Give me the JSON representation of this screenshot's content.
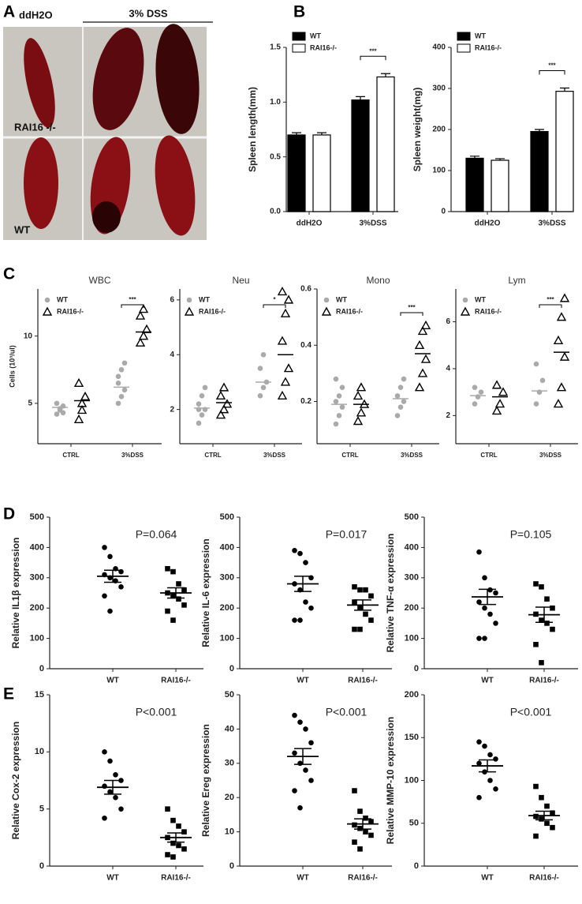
{
  "panel_labels": [
    "A",
    "B",
    "C",
    "D",
    "E"
  ],
  "photo": {
    "control": "ddH2O",
    "treatment": "3% DSS",
    "row_top": "RAI16 -/-",
    "row_bottom": "WT"
  },
  "chart_data": [
    {
      "type": "bar",
      "ylabel": "Spleen length(mm)",
      "categories": [
        "ddH2O",
        "3%DSS"
      ],
      "ylim": [
        0,
        1.5
      ],
      "yticks": [
        {
          "value": 0,
          "label": "0.0"
        },
        0.5,
        {
          "value": 1,
          "label": "1.0"
        },
        1.5
      ],
      "annotation": "***",
      "legend": "top-left",
      "series": [
        {
          "name": "WT",
          "color": "#000000",
          "values": [
            0.7,
            1.02
          ],
          "errors": [
            0.02,
            0.03
          ]
        },
        {
          "name": "RAI16-/-",
          "color": "#ffffff",
          "values": [
            0.7,
            1.23
          ],
          "errors": [
            0.02,
            0.03
          ]
        }
      ]
    },
    {
      "type": "bar",
      "ylabel": "Spleen weight(mg)",
      "categories": [
        "ddH2O",
        "3%DSS"
      ],
      "ylim": [
        0,
        400
      ],
      "yticks": [
        0,
        100,
        200,
        300,
        400
      ],
      "annotation": "***",
      "legend": "top-left",
      "series": [
        {
          "name": "WT",
          "color": "#000000",
          "values": [
            130,
            195
          ],
          "errors": [
            5,
            5
          ]
        },
        {
          "name": "RAI16-/-",
          "color": "#ffffff",
          "values": [
            125,
            293
          ],
          "errors": [
            4,
            8
          ]
        }
      ]
    },
    {
      "type": "dot",
      "title": "WBC",
      "ylabel": "Cells (10³/ul)",
      "categories": [
        "CTRL",
        "3%DSS"
      ],
      "ylim": [
        2,
        13.5
      ],
      "yticks": [
        5,
        10
      ],
      "annotation": "***",
      "legend": "top-left",
      "series": [
        {
          "name": "WT",
          "color": "#aaaaaa",
          "marker": "circle",
          "points": [
            [
              4.2,
              4.5,
              4.8,
              5.0,
              4.6,
              4.3
            ],
            [
              5,
              5.5,
              6,
              6.5,
              7.5,
              8,
              7
            ]
          ],
          "means": [
            4.7,
            6.2
          ]
        },
        {
          "name": "RAI16-/-",
          "color": "#000000",
          "marker": "open-triangle",
          "points": [
            [
              3.8,
              4.5,
              5.5,
              6.5,
              5.0
            ],
            [
              9.5,
              10,
              10.5,
              11.5,
              12
            ]
          ],
          "means": [
            5.2,
            10.3
          ]
        }
      ]
    },
    {
      "type": "dot",
      "title": "Neu",
      "categories": [
        "CTRL",
        "3%DSS"
      ],
      "ylim": [
        0.75,
        6.4
      ],
      "yticks": [
        2,
        4,
        6
      ],
      "annotation": "*",
      "legend": "top-left",
      "series": [
        {
          "name": "WT",
          "color": "#aaaaaa",
          "marker": "circle",
          "points": [
            [
              1.5,
              1.8,
              2.0,
              2.2,
              2.5,
              2.8,
              2.0
            ],
            [
              2.5,
              2.8,
              3.0,
              3.5,
              4.0
            ]
          ],
          "means": [
            2.05,
            3.0
          ]
        },
        {
          "name": "RAI16-/-",
          "color": "#000000",
          "marker": "open-triangle",
          "points": [
            [
              1.8,
              2.0,
              2.2,
              2.5,
              2.8
            ],
            [
              2.5,
              3,
              3.5,
              4.5,
              5.5,
              6.0,
              6.3
            ]
          ],
          "means": [
            2.25,
            4.0
          ]
        }
      ]
    },
    {
      "type": "dot",
      "title": "Mono",
      "categories": [
        "CTRL",
        "3%DSS"
      ],
      "ylim": [
        0.05,
        0.6
      ],
      "yticks": [
        0.2,
        0.4,
        0.6
      ],
      "annotation": "***",
      "legend": "top-left",
      "series": [
        {
          "name": "WT",
          "color": "#aaaaaa",
          "marker": "circle",
          "points": [
            [
              0.12,
              0.15,
              0.18,
              0.2,
              0.22,
              0.25,
              0.28
            ],
            [
              0.15,
              0.18,
              0.2,
              0.22,
              0.25,
              0.28
            ]
          ],
          "means": [
            0.19,
            0.21
          ]
        },
        {
          "name": "RAI16-/-",
          "color": "#000000",
          "marker": "open-triangle",
          "points": [
            [
              0.13,
              0.16,
              0.19,
              0.22,
              0.25
            ],
            [
              0.25,
              0.3,
              0.35,
              0.4,
              0.45,
              0.47
            ]
          ],
          "means": [
            0.19,
            0.37
          ]
        }
      ]
    },
    {
      "type": "dot",
      "title": "Lym",
      "categories": [
        "CTRL",
        "3%DSS"
      ],
      "ylim": [
        0.8,
        7.4
      ],
      "yticks": [
        2,
        4,
        6
      ],
      "annotation": "***",
      "legend": "top-left",
      "series": [
        {
          "name": "WT",
          "color": "#aaaaaa",
          "marker": "circle",
          "points": [
            [
              2.5,
              2.8,
              3.0,
              3.2
            ],
            [
              2.5,
              3.0,
              3.5,
              4.2
            ]
          ],
          "means": [
            2.85,
            3.05
          ]
        },
        {
          "name": "RAI16-/-",
          "color": "#000000",
          "marker": "open-triangle",
          "points": [
            [
              2.2,
              2.5,
              3.0,
              3.3
            ],
            [
              2.5,
              3.2,
              4.5,
              5.2,
              6.2,
              7.0
            ]
          ],
          "means": [
            2.8,
            4.7
          ]
        }
      ]
    },
    {
      "type": "sem",
      "ylabel": "Relative IL1β expression",
      "annotation": "P=0.064",
      "categories": [
        "WT",
        "RAI16-/-"
      ],
      "ylim": [
        0,
        500
      ],
      "yticks": [
        0,
        100,
        200,
        300,
        400,
        500
      ],
      "groups": [
        {
          "marker": "circle",
          "points": [
            400,
            370,
            330,
            320,
            310,
            300,
            290,
            270,
            240,
            190
          ],
          "mean": 305,
          "sem": 20
        },
        {
          "marker": "square",
          "points": [
            330,
            320,
            280,
            260,
            250,
            240,
            230,
            210,
            190,
            160
          ],
          "mean": 250,
          "sem": 17
        }
      ]
    },
    {
      "type": "sem",
      "ylabel": "Relative IL-6 expression",
      "annotation": "P=0.017",
      "categories": [
        "WT",
        "RAI16-/-"
      ],
      "ylim": [
        0,
        500
      ],
      "yticks": [
        0,
        100,
        200,
        300,
        400,
        500
      ],
      "groups": [
        {
          "marker": "circle",
          "points": [
            390,
            380,
            350,
            300,
            280,
            260,
            220,
            200,
            160,
            160
          ],
          "mean": 280,
          "sem": 25
        },
        {
          "marker": "square",
          "points": [
            270,
            260,
            260,
            240,
            220,
            200,
            180,
            160,
            130,
            130
          ],
          "mean": 210,
          "sem": 17
        }
      ]
    },
    {
      "type": "sem",
      "ylabel": "Relative TNF-α expression",
      "annotation": "P=0.105",
      "categories": [
        "WT",
        "RAI16-/-"
      ],
      "ylim": [
        0,
        500
      ],
      "yticks": [
        0,
        100,
        200,
        300,
        400,
        500
      ],
      "groups": [
        {
          "marker": "circle",
          "points": [
            385,
            300,
            260,
            250,
            220,
            200,
            180,
            150,
            100,
            100
          ],
          "mean": 237,
          "sem": 25
        },
        {
          "marker": "square",
          "points": [
            280,
            270,
            230,
            200,
            180,
            160,
            150,
            130,
            80,
            20
          ],
          "mean": 178,
          "sem": 25
        }
      ]
    },
    {
      "type": "sem",
      "ylabel": "Relative Cox-2 expression",
      "annotation": "P<0.001",
      "categories": [
        "WT",
        "RAI16-/-"
      ],
      "ylim": [
        0,
        15
      ],
      "yticks": [
        0,
        5,
        10,
        15
      ],
      "groups": [
        {
          "marker": "circle",
          "points": [
            10,
            9.2,
            8,
            7.5,
            7,
            6.5,
            6,
            5,
            4.2
          ],
          "mean": 6.9,
          "sem": 0.6
        },
        {
          "marker": "square",
          "points": [
            5,
            4,
            3.5,
            3,
            2.5,
            2,
            1.8,
            1.5,
            1,
            0.8
          ],
          "mean": 2.5,
          "sem": 0.4
        }
      ]
    },
    {
      "type": "sem",
      "ylabel": "Relative Ereg expression",
      "annotation": "P<0.001",
      "categories": [
        "WT",
        "RAI16-/-"
      ],
      "ylim": [
        0,
        50
      ],
      "yticks": [
        0,
        10,
        20,
        30,
        40,
        50
      ],
      "groups": [
        {
          "marker": "circle",
          "points": [
            44,
            42,
            40,
            36,
            33,
            30,
            28,
            25,
            22,
            17
          ],
          "mean": 32,
          "sem": 2.3
        },
        {
          "marker": "square",
          "points": [
            22,
            16,
            14,
            13,
            12,
            11,
            10,
            9,
            7,
            5
          ],
          "mean": 12.3,
          "sem": 1.5
        }
      ]
    },
    {
      "type": "sem",
      "ylabel": "Relative MMP-10 expression",
      "annotation": "P<0.001",
      "categories": [
        "WT",
        "RAI16-/-"
      ],
      "ylim": [
        0,
        200
      ],
      "yticks": [
        0,
        50,
        100,
        150,
        200
      ],
      "groups": [
        {
          "marker": "circle",
          "points": [
            145,
            140,
            130,
            125,
            120,
            110,
            100,
            90,
            80
          ],
          "mean": 117,
          "sem": 7
        },
        {
          "marker": "square",
          "points": [
            93,
            80,
            70,
            62,
            58,
            55,
            50,
            45,
            35
          ],
          "mean": 59,
          "sem": 5
        }
      ]
    }
  ]
}
